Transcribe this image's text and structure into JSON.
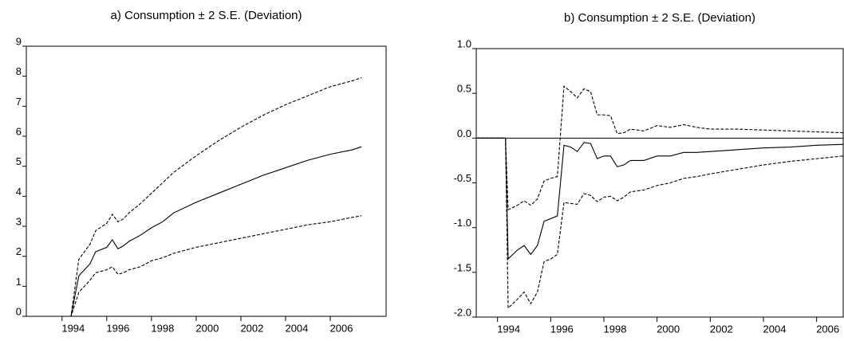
{
  "chart_data": [
    {
      "type": "line",
      "title": "a) Consumption ± 2 S.E. (Deviation)",
      "x": [
        1992.4,
        1994.4,
        1994.75,
        1995.25,
        1995.5,
        1996.0,
        1996.25,
        1996.5,
        1996.75,
        1997.0,
        1997.5,
        1998.0,
        1998.5,
        1999.0,
        2000.0,
        2001.0,
        2002.0,
        2003.0,
        2004.0,
        2005.0,
        2006.0,
        2007.0,
        2007.4
      ],
      "series": [
        {
          "color": "#000000",
          "dash": false,
          "values": [
            0,
            0,
            1.35,
            1.75,
            2.15,
            2.3,
            2.55,
            2.25,
            2.35,
            2.5,
            2.7,
            2.95,
            3.15,
            3.45,
            3.8,
            4.1,
            4.4,
            4.7,
            4.95,
            5.2,
            5.4,
            5.55,
            5.65
          ]
        },
        {
          "color": "#000000",
          "dash": true,
          "values": [
            0,
            0,
            1.9,
            2.4,
            2.85,
            3.1,
            3.4,
            3.15,
            3.25,
            3.45,
            3.75,
            4.1,
            4.45,
            4.8,
            5.35,
            5.85,
            6.3,
            6.7,
            7.05,
            7.35,
            7.65,
            7.85,
            7.95
          ]
        },
        {
          "color": "#000000",
          "dash": true,
          "values": [
            0,
            0,
            0.8,
            1.2,
            1.45,
            1.55,
            1.65,
            1.4,
            1.45,
            1.55,
            1.65,
            1.85,
            1.95,
            2.1,
            2.3,
            2.45,
            2.6,
            2.75,
            2.9,
            3.05,
            3.15,
            3.3,
            3.35
          ]
        }
      ],
      "xlim": [
        1992.4,
        2008.5
      ],
      "xticks": [
        1994,
        1996,
        1998,
        2000,
        2002,
        2004,
        2006
      ],
      "ylim": [
        0,
        9
      ],
      "yticks": [
        0,
        1,
        2,
        3,
        4,
        5,
        6,
        7,
        8,
        9
      ],
      "zero_line": false
    },
    {
      "type": "line",
      "title": "b) Consumption ± 2 S.E. (Deviation)",
      "x": [
        1993.2,
        1994.3,
        1994.4,
        1994.75,
        1995.0,
        1995.25,
        1995.5,
        1995.75,
        1996.0,
        1996.25,
        1996.5,
        1996.75,
        1997.0,
        1997.25,
        1997.5,
        1997.75,
        1998.0,
        1998.25,
        1998.5,
        1998.75,
        1999.0,
        1999.5,
        2000.0,
        2000.5,
        2001.0,
        2001.5,
        2002.0,
        2003.0,
        2004.0,
        2005.0,
        2006.0,
        2007.0
      ],
      "series": [
        {
          "color": "#000000",
          "dash": false,
          "values": [
            0,
            0,
            -1.35,
            -1.25,
            -1.2,
            -1.3,
            -1.2,
            -0.93,
            -0.9,
            -0.87,
            -0.08,
            -0.1,
            -0.15,
            -0.05,
            -0.06,
            -0.23,
            -0.2,
            -0.2,
            -0.32,
            -0.3,
            -0.25,
            -0.25,
            -0.2,
            -0.2,
            -0.16,
            -0.16,
            -0.15,
            -0.13,
            -0.11,
            -0.1,
            -0.08,
            -0.07
          ]
        },
        {
          "color": "#000000",
          "dash": true,
          "values": [
            0,
            0,
            -0.8,
            -0.75,
            -0.7,
            -0.75,
            -0.68,
            -0.48,
            -0.45,
            -0.43,
            0.58,
            0.52,
            0.45,
            0.55,
            0.52,
            0.26,
            0.26,
            0.25,
            0.05,
            0.06,
            0.1,
            0.08,
            0.14,
            0.12,
            0.15,
            0.12,
            0.1,
            0.1,
            0.09,
            0.08,
            0.07,
            0.06
          ]
        },
        {
          "color": "#000000",
          "dash": true,
          "values": [
            0,
            0,
            -1.9,
            -1.8,
            -1.72,
            -1.85,
            -1.72,
            -1.38,
            -1.35,
            -1.3,
            -0.72,
            -0.73,
            -0.74,
            -0.62,
            -0.64,
            -0.71,
            -0.66,
            -0.65,
            -0.7,
            -0.66,
            -0.6,
            -0.58,
            -0.53,
            -0.5,
            -0.45,
            -0.43,
            -0.4,
            -0.35,
            -0.3,
            -0.26,
            -0.23,
            -0.2
          ]
        }
      ],
      "xlim": [
        1993.2,
        2007.0
      ],
      "xticks": [
        1994,
        1996,
        1998,
        2000,
        2002,
        2004,
        2006
      ],
      "ylim": [
        -2.0,
        1.0
      ],
      "yticks": [
        {
          "value": 1.0,
          "label": "1.0"
        },
        0.5,
        {
          "value": 0.0,
          "label": "0.0"
        },
        -0.5,
        {
          "value": -1.0,
          "label": "-1.0"
        },
        -1.5,
        {
          "value": -2.0,
          "label": "-2.0"
        }
      ],
      "zero_line": true
    }
  ]
}
